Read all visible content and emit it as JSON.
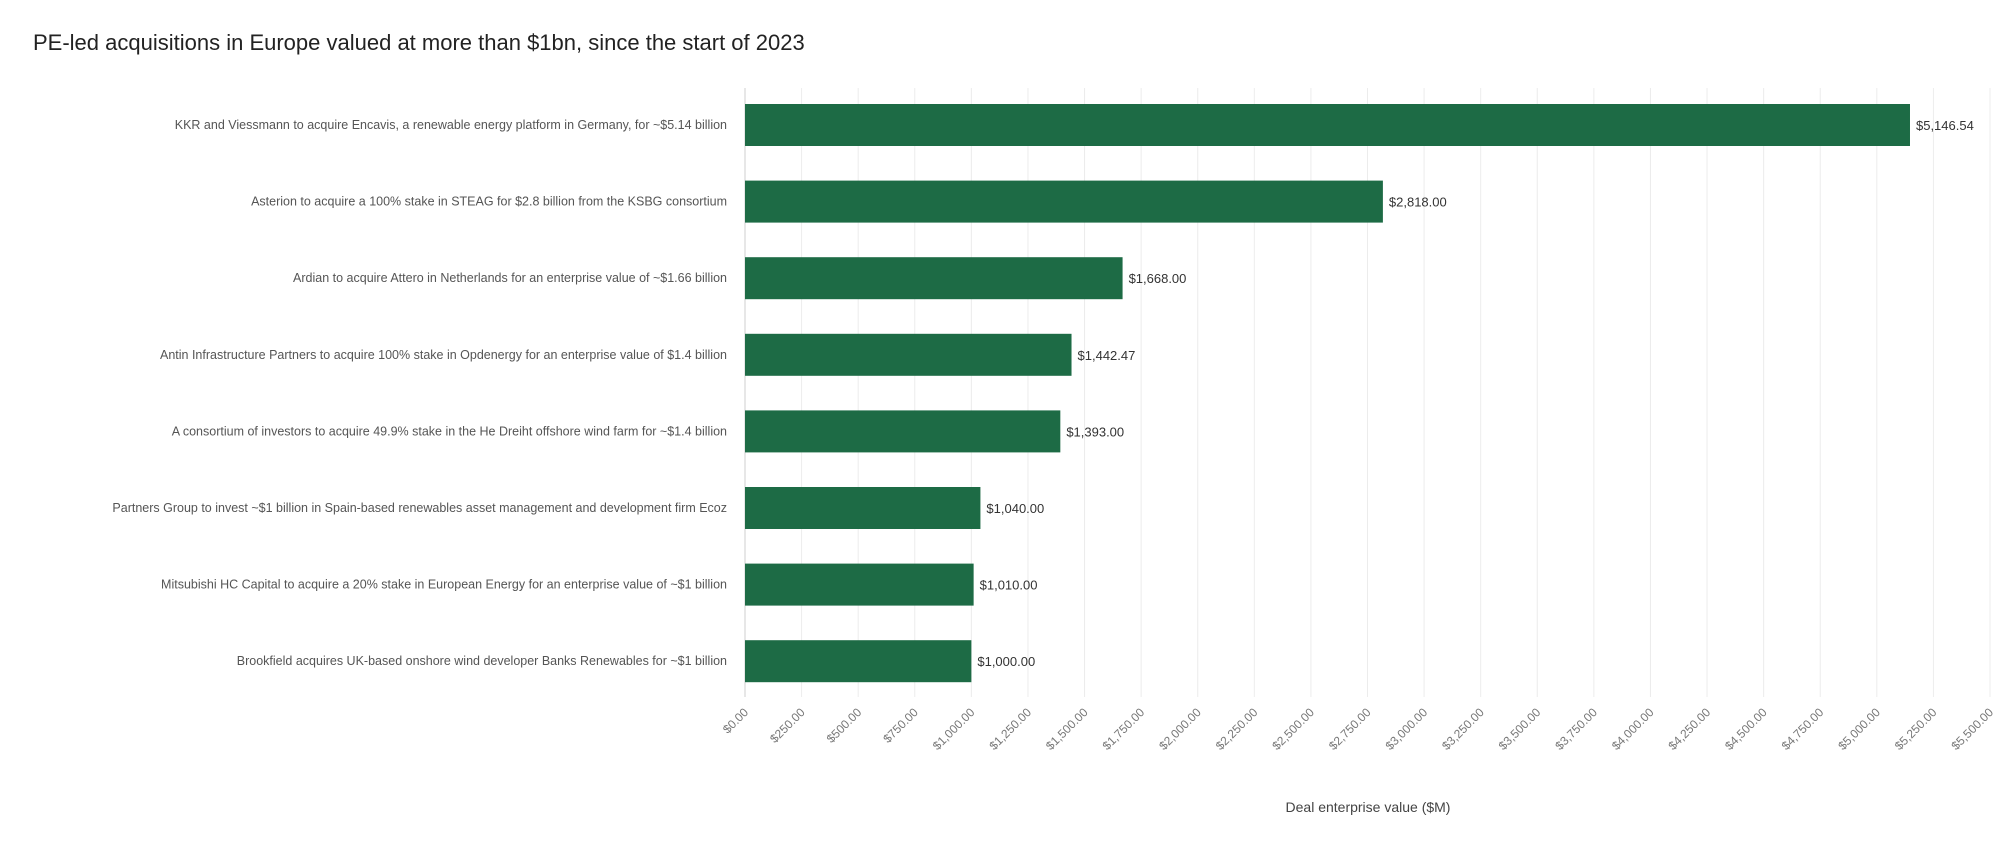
{
  "chart_data": {
    "type": "bar",
    "orientation": "horizontal",
    "title": "PE-led acquisitions in Europe valued at more than $1bn, since the start of 2023",
    "xlabel": "Deal enterprise value ($M)",
    "ylabel": "",
    "xlim": [
      0,
      5500
    ],
    "grid": true,
    "bar_color": "#1d6b45",
    "categories": [
      "KKR and Viessmann to acquire Encavis, a renewable energy platform in Germany, for ~$5.14 billion",
      "Asterion to acquire a 100% stake in STEAG for $2.8 billion from the KSBG consortium",
      "Ardian to acquire Attero in Netherlands for an enterprise value of ~$1.66 billion",
      "Antin Infrastructure Partners to acquire 100% stake in Opdenergy for an enterprise value of $1.4 billion",
      "A consortium of investors to acquire 49.9% stake in the He Dreiht offshore wind farm for ~$1.4 billion",
      "Partners Group to invest ~$1 billion in Spain-based renewables asset management and development firm Ecoz",
      "Mitsubishi HC Capital to acquire a 20% stake in European Energy for an enterprise value of ~$1 billion",
      "Brookfield acquires UK-based onshore wind developer Banks Renewables for ~$1 billion"
    ],
    "values": [
      5146.54,
      2818.0,
      1668.0,
      1442.47,
      1393.0,
      1040.0,
      1010.0,
      1000.0
    ],
    "value_labels": [
      "$5,146.54",
      "$2,818.00",
      "$1,668.00",
      "$1,442.47",
      "$1,393.00",
      "$1,040.00",
      "$1,010.00",
      "$1,000.00"
    ],
    "tick_values": [
      0,
      250,
      500,
      750,
      1000,
      1250,
      1500,
      1750,
      2000,
      2250,
      2500,
      2750,
      3000,
      3250,
      3500,
      3750,
      4000,
      4250,
      4500,
      4750,
      5000,
      5250,
      5500
    ],
    "tick_labels": [
      "$0.00",
      "$250.00",
      "$500.00",
      "$750.00",
      "$1,000.00",
      "$1,250.00",
      "$1,500.00",
      "$1,750.00",
      "$2,000.00",
      "$2,250.00",
      "$2,500.00",
      "$2,750.00",
      "$3,000.00",
      "$3,250.00",
      "$3,500.00",
      "$3,750.00",
      "$4,000.00",
      "$4,250.00",
      "$4,500.00",
      "$4,750.00",
      "$5,000.00",
      "$5,250.00",
      "$5,500.00"
    ]
  }
}
